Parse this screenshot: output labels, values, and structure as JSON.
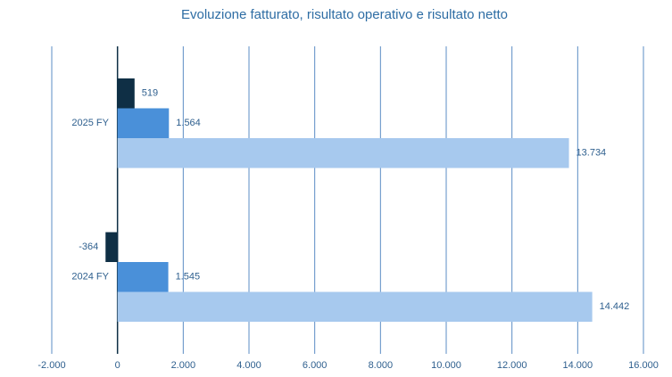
{
  "chart_data": {
    "type": "hbar",
    "title": "Evoluzione fatturato, risultato operativo e risultato netto",
    "categories": [
      "2025 FY",
      "2024 FY"
    ],
    "series": [
      {
        "color": "#0f2f45",
        "values": [
          519,
          -364
        ],
        "value_labels": [
          "519",
          "-364"
        ]
      },
      {
        "color": "#4a90d9",
        "values": [
          1564,
          1545
        ],
        "value_labels": [
          "1.564",
          "1.545"
        ]
      },
      {
        "color": "#a7c9ee",
        "values": [
          13734,
          14442
        ],
        "value_labels": [
          "13.734",
          "14.442"
        ]
      }
    ],
    "xlim": [
      -2000,
      16000
    ],
    "xticks": [
      {
        "value": -2000,
        "label": "-2.000"
      },
      0,
      {
        "value": 2000,
        "label": "2.000"
      },
      {
        "value": 4000,
        "label": "4.000"
      },
      {
        "value": 6000,
        "label": "6.000"
      },
      {
        "value": 8000,
        "label": "8.000"
      },
      {
        "value": 10000,
        "label": "10.000"
      },
      {
        "value": 12000,
        "label": "12.000"
      },
      {
        "value": 14000,
        "label": "14.000"
      },
      {
        "value": 16000,
        "label": "16.000"
      }
    ],
    "grid": true
  }
}
